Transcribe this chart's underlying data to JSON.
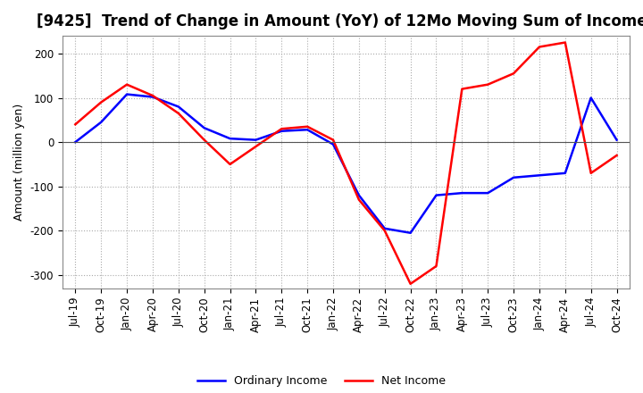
{
  "title": "[9425]  Trend of Change in Amount (YoY) of 12Mo Moving Sum of Incomes",
  "ylabel": "Amount (million yen)",
  "title_fontsize": 12,
  "label_fontsize": 9,
  "tick_fontsize": 8.5,
  "ylim": [
    -330,
    240
  ],
  "yticks": [
    200,
    100,
    0,
    -100,
    -200,
    -300
  ],
  "x_labels": [
    "Jul-19",
    "Oct-19",
    "Jan-20",
    "Apr-20",
    "Jul-20",
    "Oct-20",
    "Jan-21",
    "Apr-21",
    "Jul-21",
    "Oct-21",
    "Jan-22",
    "Apr-22",
    "Jul-22",
    "Oct-22",
    "Jan-23",
    "Apr-23",
    "Jul-23",
    "Oct-23",
    "Jan-24",
    "Apr-24",
    "Jul-24",
    "Oct-24"
  ],
  "ordinary_income": [
    0,
    45,
    108,
    102,
    80,
    32,
    8,
    5,
    25,
    28,
    -5,
    -120,
    -195,
    -205,
    -120,
    -115,
    -115,
    -80,
    -75,
    -70,
    100,
    5
  ],
  "net_income": [
    40,
    90,
    130,
    105,
    65,
    5,
    -50,
    -10,
    30,
    35,
    5,
    -130,
    -200,
    -320,
    -280,
    120,
    130,
    155,
    215,
    225,
    -70,
    -30
  ],
  "ordinary_color": "#0000FF",
  "net_color": "#FF0000",
  "background_color": "#FFFFFF",
  "grid_color": "#AAAAAA",
  "legend_labels": [
    "Ordinary Income",
    "Net Income"
  ]
}
